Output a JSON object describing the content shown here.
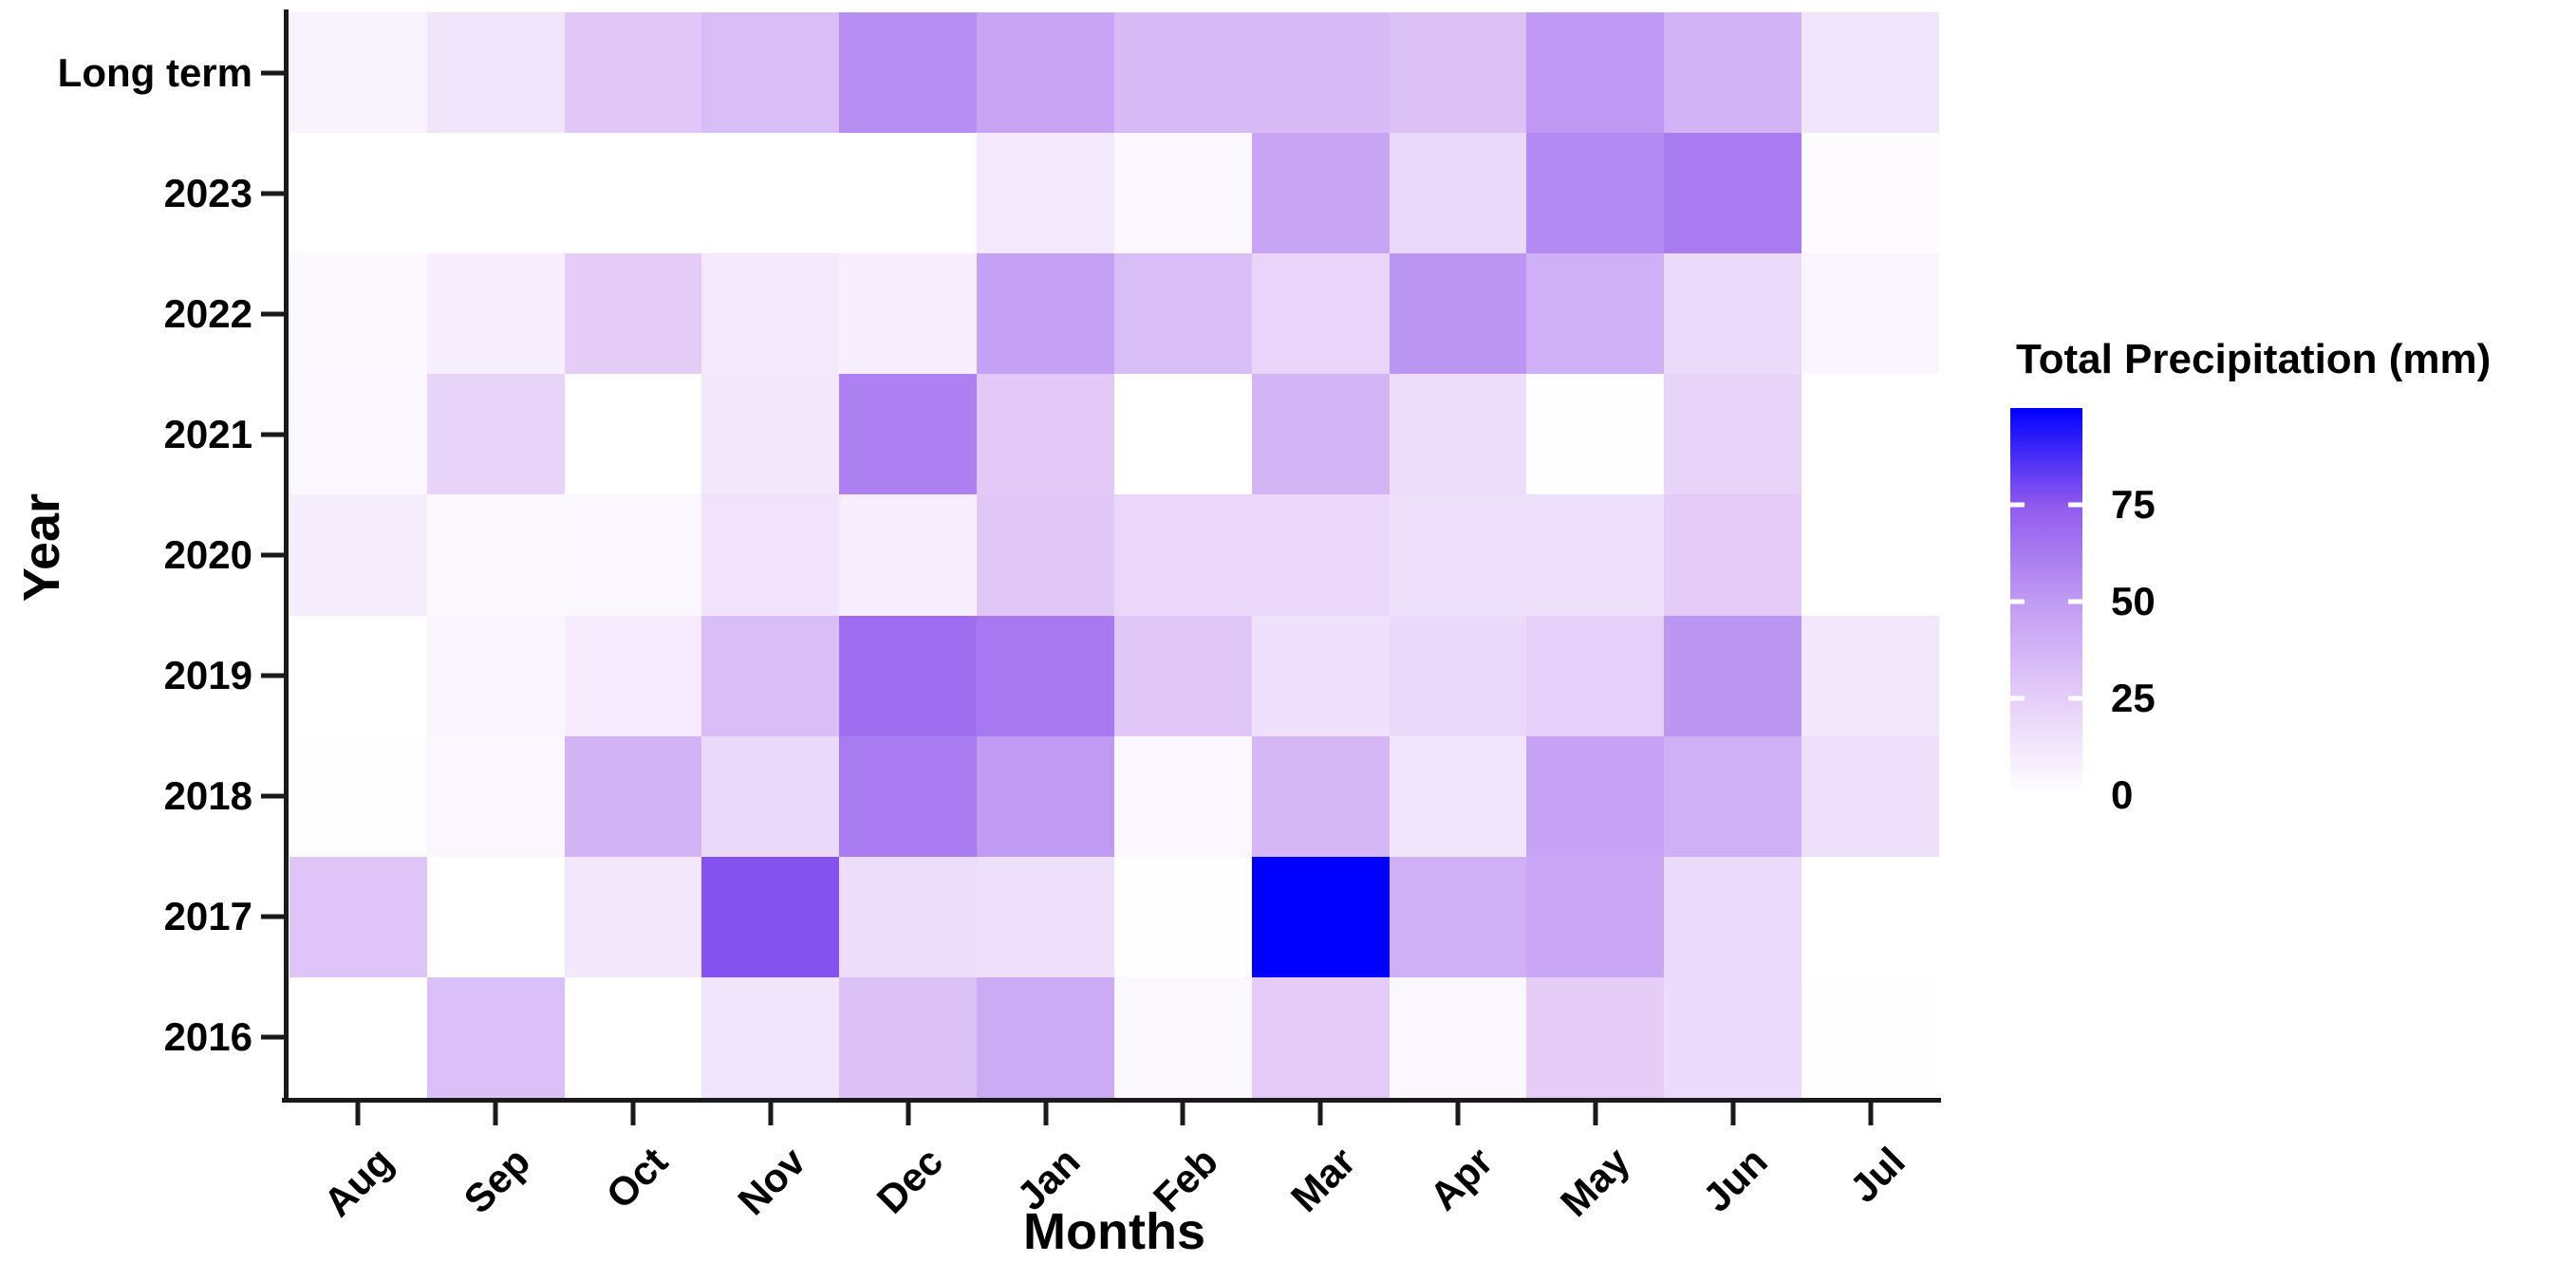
{
  "chart_data": {
    "type": "heatmap",
    "title": "",
    "xlabel": "Months",
    "ylabel": "Year",
    "legend": {
      "title": "Total Precipitation (mm)",
      "position": "right",
      "range": [
        0,
        100
      ],
      "ticks": [
        75,
        50,
        25,
        0
      ]
    },
    "colorscale": [
      {
        "value": 0,
        "color": "#FFFFFF"
      },
      {
        "value": 25,
        "color": "#E5CDF8"
      },
      {
        "value": 50,
        "color": "#C09BF3"
      },
      {
        "value": 75,
        "color": "#9059EE"
      },
      {
        "value": 100,
        "color": "#0000FF"
      }
    ],
    "categories_x": [
      "Aug",
      "Sep",
      "Oct",
      "Nov",
      "Dec",
      "Jan",
      "Feb",
      "Mar",
      "Apr",
      "May",
      "Jun",
      "Jul"
    ],
    "categories_y": [
      "Long term",
      "2023",
      "2022",
      "2021",
      "2020",
      "2019",
      "2018",
      "2017",
      "2016"
    ],
    "series": [
      {
        "name": "Long term",
        "values": [
          6,
          13,
          28,
          33,
          55,
          45,
          34,
          34,
          31,
          51,
          38,
          13
        ]
      },
      {
        "name": "2023",
        "values": [
          0,
          0,
          0,
          0,
          0,
          11,
          4,
          45,
          19,
          57,
          62,
          2
        ]
      },
      {
        "name": "2022",
        "values": [
          3,
          8,
          25,
          11,
          8,
          47,
          33,
          21,
          52,
          40,
          18,
          5
        ]
      },
      {
        "name": "2021",
        "values": [
          4,
          22,
          0,
          12,
          60,
          27,
          0,
          37,
          17,
          1,
          22,
          0
        ]
      },
      {
        "name": "2020",
        "values": [
          9,
          3,
          4,
          14,
          8,
          28,
          20,
          20,
          16,
          16,
          26,
          0
        ]
      },
      {
        "name": "2019",
        "values": [
          0,
          5,
          10,
          33,
          67,
          63,
          28,
          15,
          19,
          24,
          52,
          12
        ]
      },
      {
        "name": "2018",
        "values": [
          1,
          4,
          38,
          19,
          62,
          50,
          4,
          36,
          13,
          46,
          40,
          16
        ]
      },
      {
        "name": "2017",
        "values": [
          29,
          0,
          12,
          77,
          17,
          16,
          1,
          100,
          40,
          44,
          18,
          0
        ]
      },
      {
        "name": "2016",
        "values": [
          0,
          32,
          0,
          13,
          31,
          42,
          3,
          26,
          4,
          25,
          18,
          1
        ]
      }
    ],
    "grid": false
  }
}
